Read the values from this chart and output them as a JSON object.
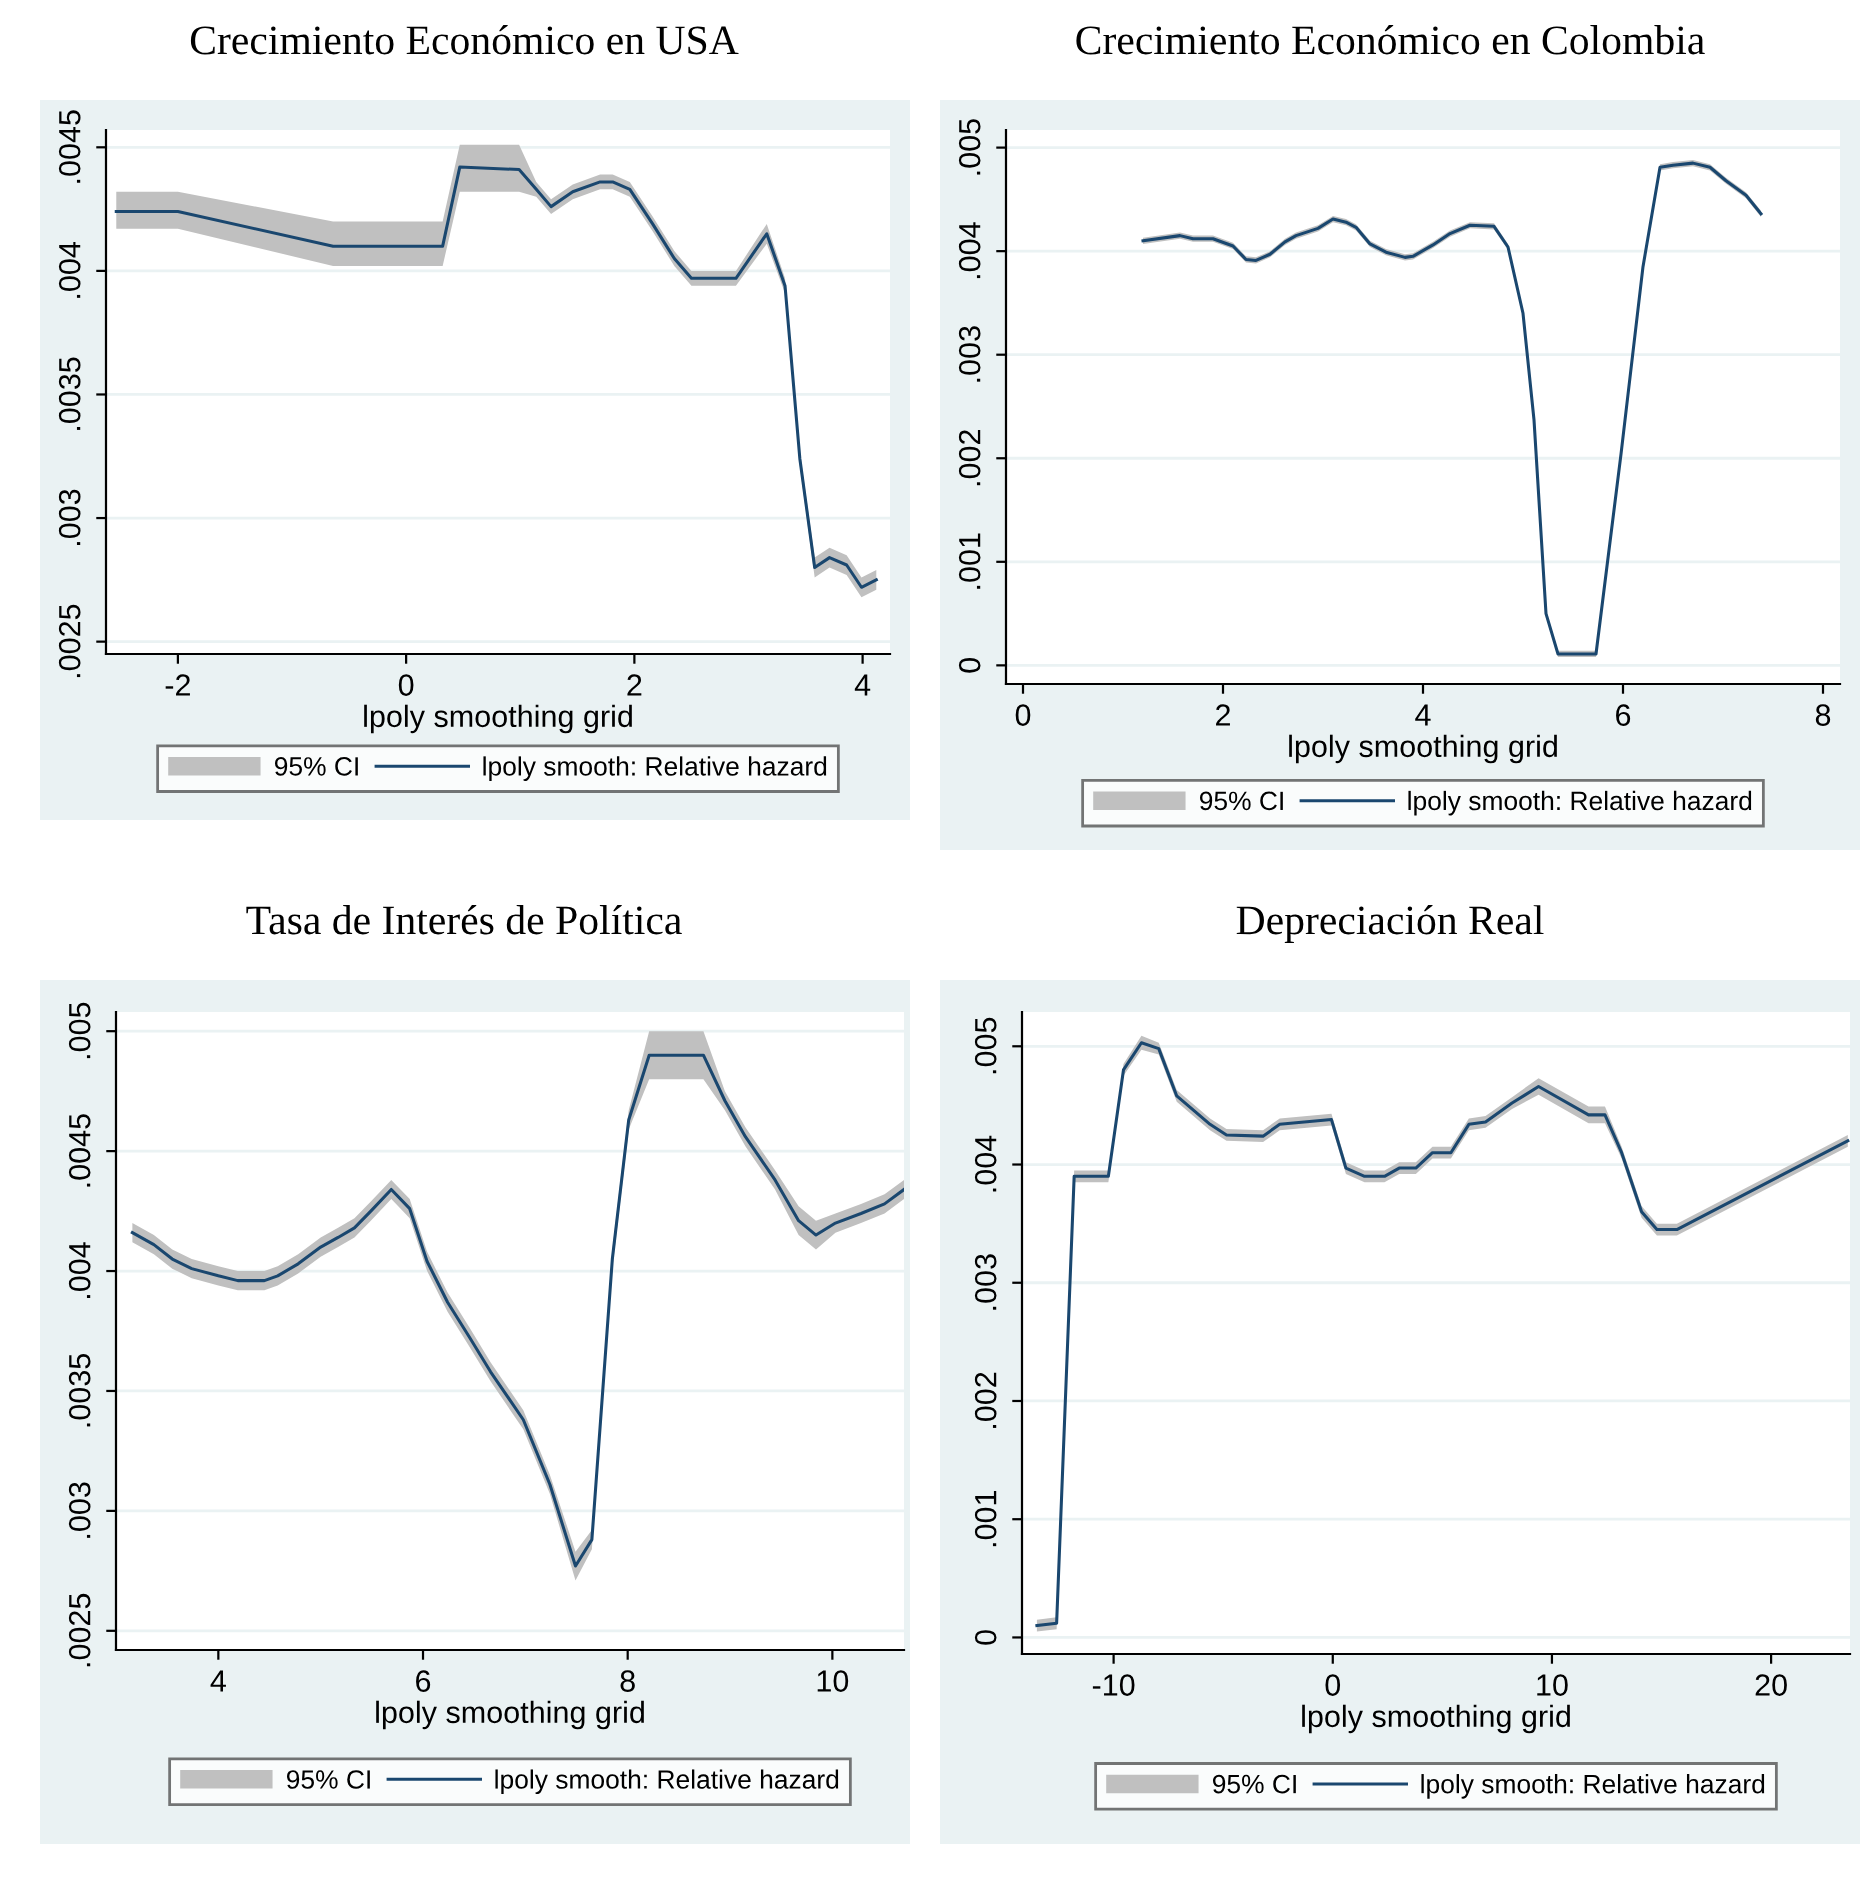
{
  "chart_data": [
    {
      "type": "line",
      "title": "Crecimiento Económico en USA",
      "xlabel": "lpoly smoothing grid",
      "annotations": [
        "95% CI"
      ],
      "xlim": [
        -2.63,
        4.24
      ],
      "ylim": [
        0.00245,
        0.00457
      ],
      "xticks": [
        -2,
        0,
        2,
        4
      ],
      "yticks": [
        {
          "value": 0.0025,
          "label": ".0025"
        },
        {
          "value": 0.003,
          "label": ".003"
        },
        {
          "value": 0.0035,
          "label": ".0035"
        },
        {
          "value": 0.004,
          "label": ".004"
        },
        {
          "value": 0.0045,
          "label": ".0045"
        }
      ],
      "grid": "y",
      "legend": "bottom",
      "series": [
        {
          "name": "lpoly smooth: Relative hazard",
          "color": "#1a476f",
          "x": [
            -2.54,
            -2,
            -0.64,
            0.32,
            0.47,
            0.99,
            1.14,
            1.27,
            1.46,
            1.7,
            1.81,
            1.96,
            2.16,
            2.35,
            2.5,
            2.89,
            3.16,
            3.32,
            3.45,
            3.58,
            3.71,
            3.86,
            3.99,
            4.12
          ],
          "values": [
            0.00424,
            0.00424,
            0.0041,
            0.0041,
            0.00442,
            0.00441,
            0.00433,
            0.00426,
            0.00432,
            0.00436,
            0.00436,
            0.00433,
            0.00419,
            0.00405,
            0.00397,
            0.00397,
            0.00415,
            0.00394,
            0.00324,
            0.0028,
            0.00284,
            0.00281,
            0.00272,
            0.00275
          ],
          "upper": [
            0.00432,
            0.00432,
            0.0042,
            0.0042,
            0.00451,
            0.00451,
            0.00436,
            0.00429,
            0.00435,
            0.00439,
            0.00439,
            0.00436,
            0.00422,
            0.00408,
            0.004,
            0.004,
            0.00419,
            0.00397,
            0.00327,
            0.00284,
            0.00288,
            0.00285,
            0.00276,
            0.00279
          ],
          "lower": [
            0.00417,
            0.00417,
            0.00402,
            0.00402,
            0.00432,
            0.00432,
            0.0043,
            0.00423,
            0.00429,
            0.00433,
            0.00433,
            0.0043,
            0.00416,
            0.00402,
            0.00394,
            0.00394,
            0.00411,
            0.00391,
            0.00321,
            0.00276,
            0.0028,
            0.00277,
            0.00268,
            0.00271
          ]
        }
      ]
    },
    {
      "type": "line",
      "title": "Crecimiento Económico en Colombia",
      "xlabel": "lpoly smoothing grid",
      "annotations": [
        "95% CI"
      ],
      "xlim": [
        -0.17,
        8.17
      ],
      "ylim": [
        -0.00018,
        0.00517
      ],
      "xticks": [
        0,
        2,
        4,
        6,
        8
      ],
      "yticks": [
        {
          "value": 0,
          "label": "0"
        },
        {
          "value": 0.001,
          "label": ".001"
        },
        {
          "value": 0.002,
          "label": ".002"
        },
        {
          "value": 0.003,
          "label": ".003"
        },
        {
          "value": 0.004,
          "label": ".004"
        },
        {
          "value": 0.005,
          "label": ".005"
        }
      ],
      "grid": "y",
      "legend": "bottom",
      "series": [
        {
          "name": "lpoly smooth: Relative hazard",
          "color": "#1a476f",
          "x": [
            1.2,
            1.57,
            1.7,
            1.9,
            2.1,
            2.23,
            2.33,
            2.47,
            2.62,
            2.73,
            2.95,
            3.1,
            3.23,
            3.33,
            3.47,
            3.63,
            3.82,
            3.9,
            4.1,
            4.27,
            4.47,
            4.71,
            4.85,
            5.0,
            5.11,
            5.23,
            5.35,
            5.73,
            5.98,
            6.2,
            6.37,
            6.5,
            6.7,
            6.87,
            7.03,
            7.23,
            7.38
          ],
          "values": [
            0.0041,
            0.00415,
            0.00412,
            0.00412,
            0.00405,
            0.00392,
            0.00391,
            0.00397,
            0.00409,
            0.00415,
            0.00422,
            0.00431,
            0.00428,
            0.00423,
            0.00407,
            0.00399,
            0.00394,
            0.00395,
            0.00406,
            0.00417,
            0.00425,
            0.00424,
            0.00404,
            0.0034,
            0.00237,
            0.0005,
            0.00011,
            0.00011,
            0.00204,
            0.00385,
            0.00481,
            0.00483,
            0.00485,
            0.00481,
            0.00468,
            0.00454,
            0.00436
          ],
          "upper": [
            0.00413,
            0.00418,
            0.00415,
            0.00415,
            0.00408,
            0.00395,
            0.00394,
            0.004,
            0.00412,
            0.00418,
            0.00425,
            0.00434,
            0.00431,
            0.00426,
            0.0041,
            0.00402,
            0.00397,
            0.00398,
            0.00409,
            0.0042,
            0.00428,
            0.00427,
            0.00407,
            0.00343,
            0.0024,
            0.00053,
            0.00014,
            0.00014,
            0.00207,
            0.00388,
            0.00484,
            0.00486,
            0.00488,
            0.00484,
            0.00471,
            0.00457,
            0.00439
          ],
          "lower": [
            0.00407,
            0.00412,
            0.00409,
            0.00409,
            0.00402,
            0.00389,
            0.00388,
            0.00394,
            0.00406,
            0.00412,
            0.00419,
            0.00428,
            0.00425,
            0.0042,
            0.00404,
            0.00396,
            0.00391,
            0.00392,
            0.00403,
            0.00414,
            0.00422,
            0.00421,
            0.00401,
            0.00337,
            0.00234,
            0.00047,
            8e-05,
            8e-05,
            0.00201,
            0.00382,
            0.00478,
            0.0048,
            0.00482,
            0.00478,
            0.00465,
            0.00451,
            0.00433
          ]
        }
      ]
    },
    {
      "type": "line",
      "title": "Tasa de Interés de Política",
      "xlabel": "lpoly smoothing grid",
      "annotations": [
        "95% CI"
      ],
      "xlim": [
        3.0,
        10.7
      ],
      "ylim": [
        0.00242,
        0.00508
      ],
      "xticks": [
        4,
        6,
        8,
        10
      ],
      "yticks": [
        {
          "value": 0.0025,
          "label": ".0025"
        },
        {
          "value": 0.003,
          "label": ".003"
        },
        {
          "value": 0.0035,
          "label": ".0035"
        },
        {
          "value": 0.004,
          "label": ".004"
        },
        {
          "value": 0.0045,
          "label": ".0045"
        },
        {
          "value": 0.005,
          "label": ".005"
        }
      ],
      "grid": "y",
      "legend": "bottom",
      "series": [
        {
          "name": "lpoly smooth: Relative hazard",
          "color": "#1a476f",
          "x": [
            3.16,
            3.37,
            3.55,
            3.74,
            4.0,
            4.19,
            4.45,
            4.58,
            4.78,
            5.0,
            5.17,
            5.33,
            5.49,
            5.69,
            5.87,
            6.04,
            6.24,
            6.46,
            6.66,
            6.98,
            7.24,
            7.49,
            7.65,
            7.85,
            8.01,
            8.21,
            8.74,
            8.95,
            9.15,
            9.44,
            9.67,
            9.84,
            10.03,
            10.28,
            10.51,
            10.7
          ],
          "values": [
            0.00416,
            0.00411,
            0.00405,
            0.00401,
            0.00398,
            0.00396,
            0.00396,
            0.00398,
            0.00403,
            0.0041,
            0.00414,
            0.00418,
            0.00425,
            0.00434,
            0.00426,
            0.00404,
            0.00387,
            0.00372,
            0.00358,
            0.00338,
            0.00311,
            0.00277,
            0.00288,
            0.00405,
            0.00463,
            0.0049,
            0.0049,
            0.00471,
            0.00456,
            0.00438,
            0.00421,
            0.00415,
            0.0042,
            0.00424,
            0.00428,
            0.00434
          ],
          "upper": [
            0.0042,
            0.00415,
            0.00409,
            0.00405,
            0.00402,
            0.004,
            0.004,
            0.00402,
            0.00407,
            0.00414,
            0.00418,
            0.00422,
            0.00429,
            0.00438,
            0.0043,
            0.00408,
            0.00391,
            0.00376,
            0.00362,
            0.00342,
            0.00315,
            0.00283,
            0.00292,
            0.00409,
            0.00467,
            0.005,
            0.005,
            0.00475,
            0.0046,
            0.00442,
            0.00427,
            0.00421,
            0.00424,
            0.00428,
            0.00432,
            0.00438
          ],
          "lower": [
            0.00412,
            0.00407,
            0.00401,
            0.00397,
            0.00394,
            0.00392,
            0.00392,
            0.00394,
            0.00399,
            0.00406,
            0.0041,
            0.00414,
            0.00421,
            0.0043,
            0.00422,
            0.004,
            0.00383,
            0.00368,
            0.00354,
            0.00334,
            0.00307,
            0.00271,
            0.00284,
            0.00401,
            0.00459,
            0.0048,
            0.0048,
            0.00467,
            0.00452,
            0.00434,
            0.00415,
            0.00409,
            0.00416,
            0.0042,
            0.00424,
            0.0043
          ]
        }
      ]
    },
    {
      "type": "line",
      "title": "Depreciación Real",
      "xlabel": "lpoly smoothing grid",
      "annotations": [
        "95% CI"
      ],
      "xlim": [
        -14.18,
        23.6
      ],
      "ylim": [
        -0.00014,
        0.00529
      ],
      "xticks": [
        -10,
        0,
        10,
        20
      ],
      "yticks": [
        {
          "value": 0,
          "label": "0"
        },
        {
          "value": 0.001,
          "label": ".001"
        },
        {
          "value": 0.002,
          "label": ".002"
        },
        {
          "value": 0.003,
          "label": ".003"
        },
        {
          "value": 0.004,
          "label": ".004"
        },
        {
          "value": 0.005,
          "label": ".005"
        }
      ],
      "grid": "y",
      "legend": "bottom",
      "series": [
        {
          "name": "lpoly smooth: Relative hazard",
          "color": "#1a476f",
          "x": [
            -13.5,
            -12.6,
            -11.8,
            -10.24,
            -9.55,
            -8.73,
            -7.94,
            -7.12,
            -6.36,
            -5.6,
            -4.85,
            -3.18,
            -2.42,
            -0.06,
            0.6,
            1.45,
            2.36,
            3.03,
            3.79,
            4.55,
            5.39,
            6.21,
            6.97,
            8.18,
            9.39,
            11.67,
            12.42,
            13.18,
            14.09,
            14.79,
            15.7,
            23.5
          ],
          "values": [
            0.0001,
            0.00012,
            0.0039,
            0.0039,
            0.0048,
            0.00503,
            0.00498,
            0.00458,
            0.00446,
            0.00434,
            0.00425,
            0.00424,
            0.00434,
            0.00438,
            0.00397,
            0.0039,
            0.0039,
            0.00397,
            0.00397,
            0.0041,
            0.0041,
            0.00434,
            0.00436,
            0.00452,
            0.00466,
            0.00442,
            0.00442,
            0.0041,
            0.0036,
            0.00345,
            0.00345,
            0.0042
          ],
          "upper": [
            0.00015,
            0.00017,
            0.00395,
            0.00395,
            0.00485,
            0.00509,
            0.00503,
            0.00463,
            0.00451,
            0.00439,
            0.0043,
            0.00429,
            0.00439,
            0.00443,
            0.00402,
            0.00395,
            0.00395,
            0.00402,
            0.00402,
            0.00415,
            0.00415,
            0.00439,
            0.00441,
            0.00457,
            0.00473,
            0.00449,
            0.00449,
            0.00415,
            0.00365,
            0.0035,
            0.0035,
            0.00425
          ],
          "lower": [
            5e-05,
            7e-05,
            0.00385,
            0.00385,
            0.00475,
            0.00497,
            0.00493,
            0.00453,
            0.00441,
            0.00429,
            0.0042,
            0.00419,
            0.00429,
            0.00433,
            0.00392,
            0.00385,
            0.00385,
            0.00392,
            0.00392,
            0.00405,
            0.00405,
            0.00429,
            0.00431,
            0.00447,
            0.00459,
            0.00435,
            0.00435,
            0.00405,
            0.00355,
            0.0034,
            0.0034,
            0.00415
          ]
        }
      ]
    }
  ]
}
